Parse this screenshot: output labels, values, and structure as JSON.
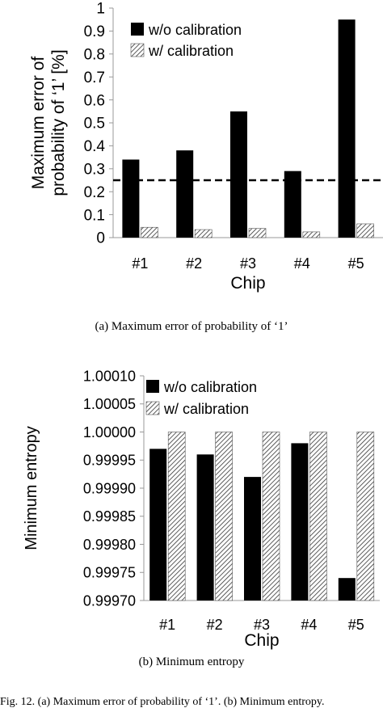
{
  "chart_data": [
    {
      "type": "bar",
      "categories": [
        "#1",
        "#2",
        "#3",
        "#4",
        "#5"
      ],
      "series": [
        {
          "name": "w/o calibration",
          "values": [
            0.34,
            0.38,
            0.55,
            0.29,
            0.95
          ]
        },
        {
          "name": "w/ calibration",
          "values": [
            0.045,
            0.035,
            0.04,
            0.025,
            0.06
          ]
        }
      ],
      "xlabel": "Chip",
      "ylabel": "Maximum error of probability of ‘1’ [%]",
      "ylim": [
        0,
        1
      ],
      "yticks": [
        "0",
        "0.1",
        "0.2",
        "0.3",
        "0.4",
        "0.5",
        "0.6",
        "0.7",
        "0.8",
        "0.9",
        "1"
      ],
      "reference_line": {
        "y": 0.25,
        "style": "dashed"
      },
      "legend": "top-left",
      "grid": false,
      "caption": "(a) Maximum error of probability of ‘1’"
    },
    {
      "type": "bar",
      "categories": [
        "#1",
        "#2",
        "#3",
        "#4",
        "#5"
      ],
      "series": [
        {
          "name": "w/o calibration",
          "values": [
            0.99997,
            0.99996,
            0.99992,
            0.99998,
            0.99974
          ]
        },
        {
          "name": "w/ calibration",
          "values": [
            1.0,
            1.0,
            1.0,
            1.0,
            1.0
          ]
        }
      ],
      "xlabel": "Chip",
      "ylabel": "Minimum entropy",
      "ylim": [
        0.9997,
        1.0001
      ],
      "yticks": [
        "0.99970",
        "0.99975",
        "0.99980",
        "0.99985",
        "0.99990",
        "0.99995",
        "1.00000",
        "1.00005",
        "1.00010"
      ],
      "legend": "top-left",
      "grid": false,
      "caption": "(b) Minimum entropy"
    }
  ],
  "bottom_caption": "Fig. 12.   (a) Maximum error of probability of ‘1’. (b) Minimum entropy.",
  "colors": {
    "solid": "#000000",
    "hatch": "#333333",
    "background": "#ffffff"
  }
}
